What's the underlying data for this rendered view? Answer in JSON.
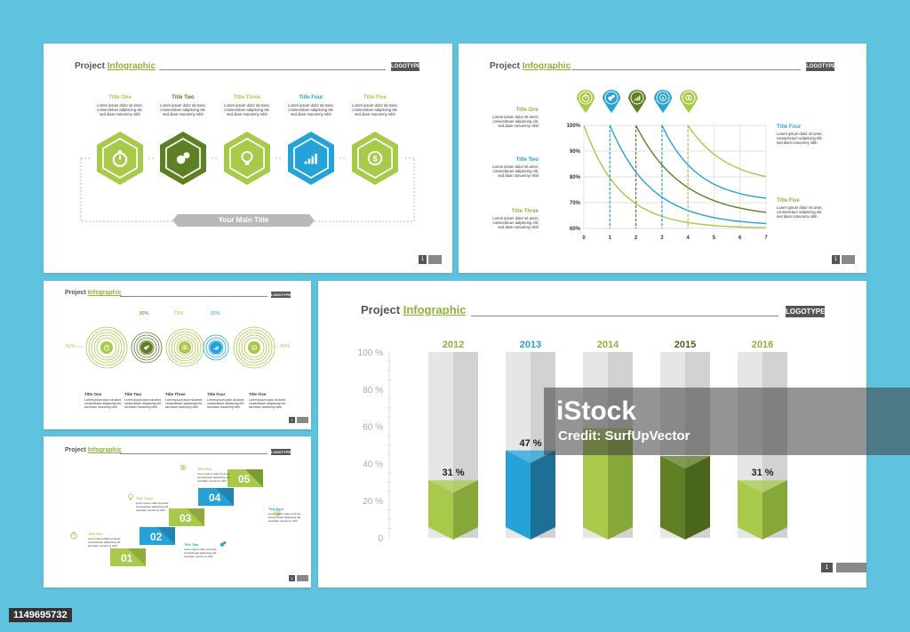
{
  "brand": {
    "header_plain": "Project",
    "header_highlight": "Infographic",
    "logo": "LOGOTYPE",
    "page_number": "1"
  },
  "lorem": [
    "Lorem ipsum dolor sit amet,",
    "consectetuer adipiscing elit,",
    "sed diam nonummy nibh"
  ],
  "colors": {
    "light_green": "#a8c94a",
    "dark_green": "#5e7f23",
    "blue": "#25a3d8",
    "dark_blue": "#1d6f95",
    "gray": "#555555"
  },
  "slide1": {
    "steps": [
      {
        "title": "Title One",
        "color": "#a8c94a",
        "icon": "stopwatch-icon"
      },
      {
        "title": "Title Two",
        "color": "#5e7f23",
        "icon": "gears-icon"
      },
      {
        "title": "Title Three",
        "color": "#a8c94a",
        "icon": "lightbulb-icon"
      },
      {
        "title": "Title Four",
        "color": "#25a3d8",
        "icon": "chart-icon"
      },
      {
        "title": "Title Five",
        "color": "#a8c94a",
        "icon": "dollar-icon"
      }
    ],
    "main_title": "Your Main Title"
  },
  "slide2": {
    "left_titles": [
      "Title One",
      "Title Two",
      "Title Three"
    ],
    "right_titles": [
      "Title Four",
      "Title Five"
    ],
    "pins": [
      {
        "icon": "stopwatch-icon",
        "color": "#a8c94a"
      },
      {
        "icon": "gears-icon",
        "color": "#25a3d8"
      },
      {
        "icon": "chart-icon",
        "color": "#5e7f23"
      },
      {
        "icon": "dollar-icon",
        "color": "#25a3d8"
      },
      {
        "icon": "brain-icon",
        "color": "#a8c94a"
      }
    ]
  },
  "slide3": {
    "percents": [
      "50%",
      "30%",
      "75%",
      "15%",
      "45%"
    ],
    "titles": [
      "Title One",
      "Title Two",
      "Title Three",
      "Title Four",
      "Title Five"
    ]
  },
  "slide4": {
    "steps": [
      "01",
      "02",
      "03",
      "04",
      "05"
    ],
    "titles": [
      "Title One",
      "Title Two",
      "Title Three",
      "Title Four",
      "Title Five"
    ]
  },
  "chart_data": [
    {
      "type": "line",
      "x": [
        0,
        1,
        2,
        3,
        4,
        5,
        6,
        7
      ],
      "yticks": [
        "100%",
        "90%",
        "80%",
        "70%",
        "60%"
      ],
      "ylim": [
        60,
        100
      ],
      "xlim": [
        0,
        7
      ],
      "series_count": 5
    },
    {
      "type": "bar",
      "categories": [
        "2012",
        "2013",
        "2014",
        "2015",
        "2016"
      ],
      "values": [
        31,
        47,
        59,
        44,
        31
      ],
      "value_labels": [
        "31 %",
        "47 %",
        "",
        "",
        "31 %"
      ],
      "category_colors": [
        "#a8c94a",
        "#25a3d8",
        "#a8c94a",
        "#5e7f23",
        "#a8c94a"
      ],
      "yticks": [
        "100 %",
        "80 %",
        "60 %",
        "40 %",
        "20 %",
        "0"
      ],
      "ylim": [
        0,
        100
      ],
      "grid": false
    }
  ],
  "watermark": {
    "brand": "iStock",
    "credit": "Credit: SurfUpVector"
  },
  "stock_id": "1149695732"
}
